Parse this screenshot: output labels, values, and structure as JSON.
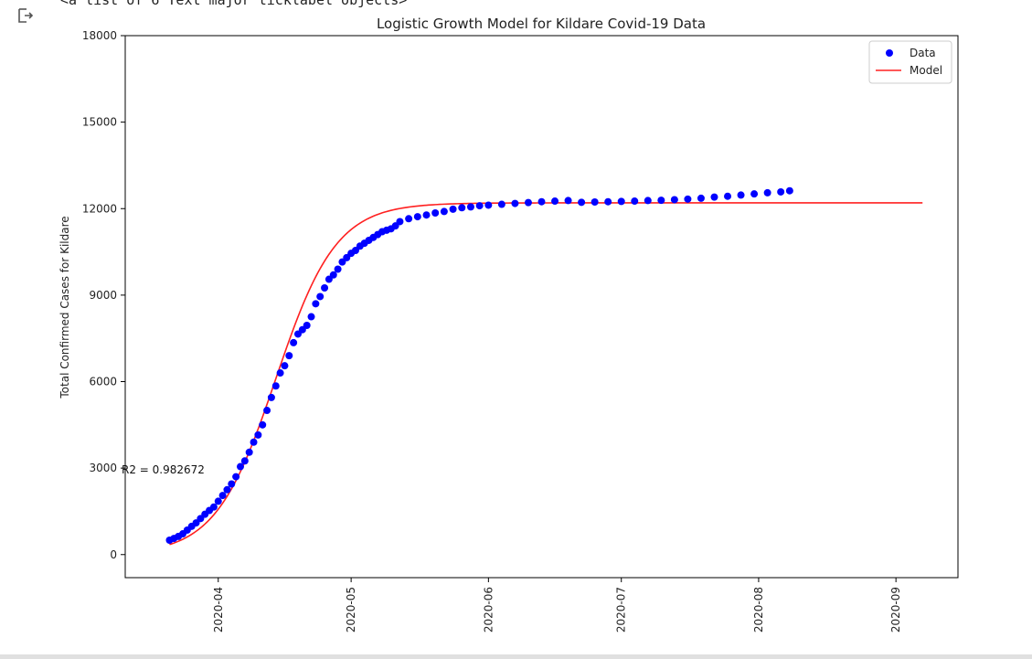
{
  "output": {
    "icon": "output-arrow-icon",
    "truncated_text": "<a list of 6 Text major ticklabel objects>"
  },
  "chart_data": {
    "type": "scatter+line",
    "title": "Logistic Growth Model for Kildare Covid-19 Data",
    "xlabel": "",
    "ylabel": "Total Confirmed Cases for Kildare",
    "ylim": [
      -800,
      18000
    ],
    "yticks": [
      0,
      3000,
      6000,
      9000,
      12000,
      15000,
      18000
    ],
    "xlim": [
      "2020-03-11",
      "2020-09-15"
    ],
    "xticks": [
      "2020-04",
      "2020-05",
      "2020-06",
      "2020-07",
      "2020-08",
      "2020-09"
    ],
    "grid": false,
    "legend_position": "top-right",
    "annotation": "R2 = 0.982672",
    "series": [
      {
        "name": "Data",
        "kind": "scatter",
        "color": "#0000ff",
        "x": [
          "2020-03-21",
          "2020-03-22",
          "2020-03-23",
          "2020-03-24",
          "2020-03-25",
          "2020-03-26",
          "2020-03-27",
          "2020-03-28",
          "2020-03-29",
          "2020-03-30",
          "2020-03-31",
          "2020-04-01",
          "2020-04-02",
          "2020-04-03",
          "2020-04-04",
          "2020-04-05",
          "2020-04-06",
          "2020-04-07",
          "2020-04-08",
          "2020-04-09",
          "2020-04-10",
          "2020-04-11",
          "2020-04-12",
          "2020-04-13",
          "2020-04-14",
          "2020-04-15",
          "2020-04-16",
          "2020-04-17",
          "2020-04-18",
          "2020-04-19",
          "2020-04-20",
          "2020-04-21",
          "2020-04-22",
          "2020-04-23",
          "2020-04-24",
          "2020-04-25",
          "2020-04-26",
          "2020-04-27",
          "2020-04-28",
          "2020-04-29",
          "2020-04-30",
          "2020-05-01",
          "2020-05-02",
          "2020-05-03",
          "2020-05-04",
          "2020-05-05",
          "2020-05-06",
          "2020-05-07",
          "2020-05-08",
          "2020-05-09",
          "2020-05-10",
          "2020-05-11",
          "2020-05-12",
          "2020-05-14",
          "2020-05-16",
          "2020-05-18",
          "2020-05-20",
          "2020-05-22",
          "2020-05-24",
          "2020-05-26",
          "2020-05-28",
          "2020-05-30",
          "2020-06-01",
          "2020-06-04",
          "2020-06-07",
          "2020-06-10",
          "2020-06-13",
          "2020-06-16",
          "2020-06-19",
          "2020-06-22",
          "2020-06-25",
          "2020-06-28",
          "2020-07-01",
          "2020-07-04",
          "2020-07-07",
          "2020-07-10",
          "2020-07-13",
          "2020-07-16",
          "2020-07-19",
          "2020-07-22",
          "2020-07-25",
          "2020-07-28",
          "2020-07-31",
          "2020-08-03",
          "2020-08-06",
          "2020-08-08"
        ],
        "y": [
          500,
          560,
          630,
          720,
          850,
          980,
          1100,
          1250,
          1400,
          1530,
          1650,
          1850,
          2050,
          2250,
          2450,
          2700,
          3050,
          3250,
          3550,
          3900,
          4150,
          4500,
          5000,
          5450,
          5850,
          6300,
          6550,
          6900,
          7350,
          7650,
          7800,
          7950,
          8250,
          8700,
          8950,
          9250,
          9550,
          9700,
          9900,
          10150,
          10300,
          10450,
          10550,
          10700,
          10800,
          10900,
          11000,
          11100,
          11200,
          11250,
          11300,
          11400,
          11550,
          11650,
          11720,
          11780,
          11850,
          11900,
          11980,
          12030,
          12060,
          12100,
          12120,
          12150,
          12180,
          12210,
          12240,
          12260,
          12280,
          12220,
          12230,
          12240,
          12250,
          12260,
          12280,
          12290,
          12310,
          12330,
          12360,
          12400,
          12430,
          12470,
          12510,
          12550,
          12580,
          12620
        ]
      },
      {
        "name": "Model",
        "kind": "line",
        "color": "#ff2020",
        "function": "logistic",
        "K": 12200,
        "r": 0.147,
        "t0": "2020-04-14",
        "x_start": "2020-03-21",
        "x_end": "2020-09-07"
      }
    ]
  }
}
